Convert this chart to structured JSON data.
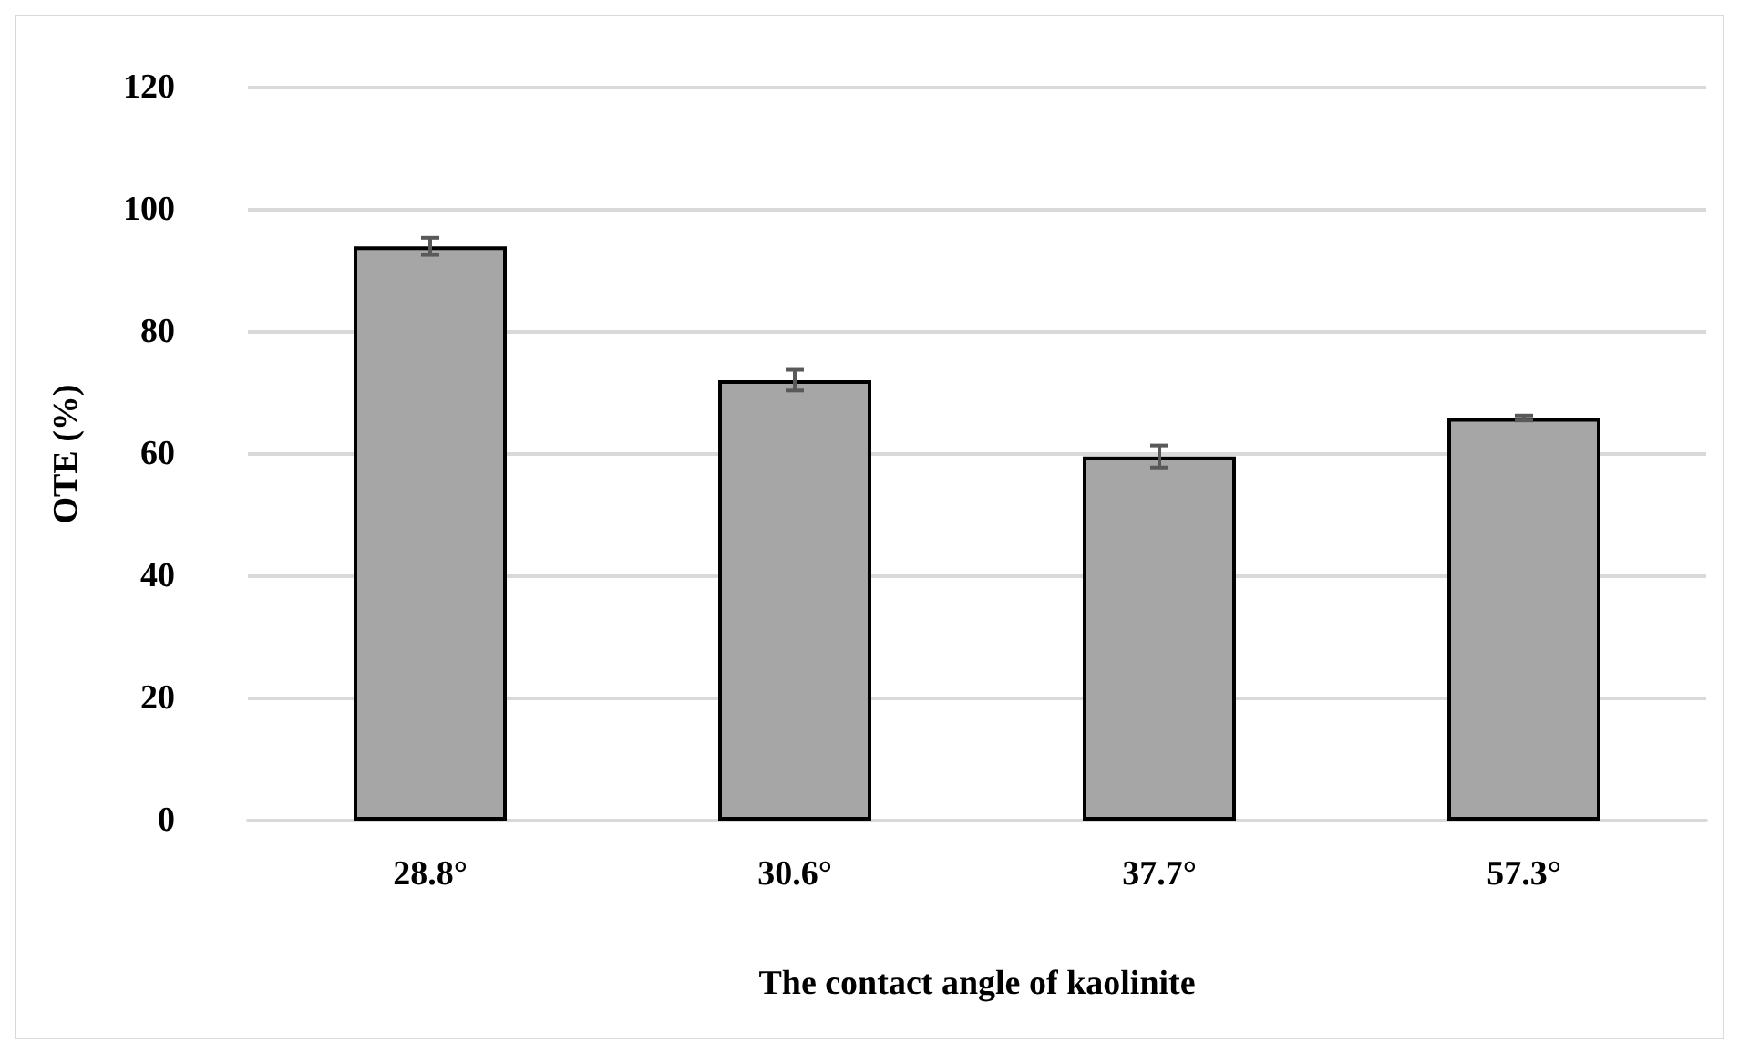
{
  "chart_data": {
    "type": "bar",
    "xlabel": "The contact angle of kaolinite",
    "ylabel": "OTE (%)",
    "categories": [
      "28.8°",
      "30.6°",
      "37.7°",
      "57.3°"
    ],
    "values": [
      94.0,
      72.1,
      59.6,
      65.9
    ],
    "errors": [
      1.4,
      1.7,
      1.8,
      0.4
    ],
    "color": "#a6a6a6",
    "ylim": [
      0,
      120
    ],
    "yticks": [
      0,
      20,
      40,
      60,
      80,
      100,
      120
    ],
    "grid": "y"
  }
}
